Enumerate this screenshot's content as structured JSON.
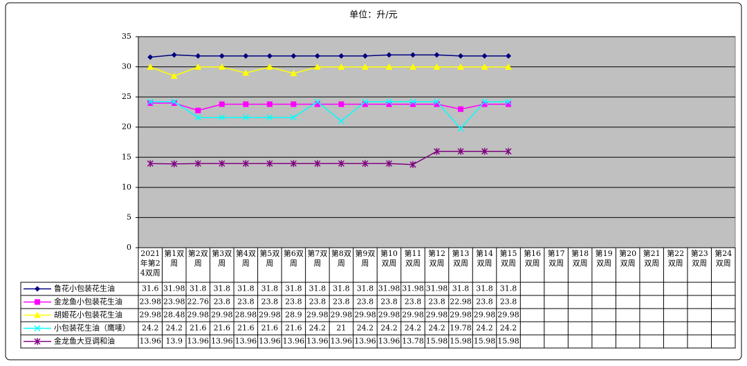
{
  "chart_data": {
    "type": "line",
    "title": "单位：升/元",
    "categories": [
      "2021年第24双周",
      "第1双周",
      "第2双周",
      "第3双周",
      "第4双周",
      "第5双周",
      "第6双周",
      "第7双周",
      "第8双周",
      "第9双周",
      "第10双周",
      "第11双周",
      "第12双周",
      "第13双周",
      "第14双周",
      "第15双周",
      "第16双周",
      "第17双周",
      "第18双周",
      "第19双周",
      "第20双周",
      "第21双周",
      "第22双周",
      "第23双周",
      "第24双周"
    ],
    "series": [
      {
        "name": "鲁花小包装花生油",
        "color": "#000080",
        "marker": "diamond",
        "values": [
          31.6,
          31.98,
          31.8,
          31.8,
          31.8,
          31.8,
          31.8,
          31.8,
          31.8,
          31.8,
          31.98,
          31.98,
          31.98,
          31.8,
          31.8,
          31.8,
          null,
          null,
          null,
          null,
          null,
          null,
          null,
          null,
          null
        ]
      },
      {
        "name": "金龙鱼小包装花生油",
        "color": "#ff00ff",
        "marker": "square",
        "values": [
          23.98,
          23.98,
          22.76,
          23.8,
          23.8,
          23.8,
          23.8,
          23.8,
          23.8,
          23.8,
          23.8,
          23.8,
          23.8,
          22.98,
          23.8,
          23.8,
          null,
          null,
          null,
          null,
          null,
          null,
          null,
          null,
          null
        ]
      },
      {
        "name": "胡姬花小包装花生油",
        "color": "#ffff00",
        "marker": "triangle",
        "values": [
          29.98,
          28.48,
          29.98,
          29.98,
          28.98,
          29.98,
          28.9,
          29.98,
          29.98,
          29.98,
          29.98,
          29.98,
          29.98,
          29.98,
          29.98,
          29.98,
          null,
          null,
          null,
          null,
          null,
          null,
          null,
          null,
          null
        ]
      },
      {
        "name": "小包装花生油（鹰唛）",
        "color": "#00ffff",
        "marker": "x",
        "values": [
          24.2,
          24.2,
          21.6,
          21.6,
          21.6,
          21.6,
          21.6,
          24.2,
          21,
          24.2,
          24.2,
          24.2,
          24.2,
          19.78,
          24.2,
          24.2,
          null,
          null,
          null,
          null,
          null,
          null,
          null,
          null,
          null
        ]
      },
      {
        "name": "金龙鱼大豆调和油",
        "color": "#800080",
        "marker": "asterisk",
        "values": [
          13.96,
          13.9,
          13.96,
          13.96,
          13.96,
          13.96,
          13.96,
          13.96,
          13.96,
          13.96,
          13.96,
          13.78,
          15.98,
          15.98,
          15.98,
          15.98,
          null,
          null,
          null,
          null,
          null,
          null,
          null,
          null,
          null
        ]
      }
    ],
    "ylim": [
      0,
      35
    ],
    "yticks": [
      0,
      5,
      10,
      15,
      20,
      25,
      30,
      35
    ],
    "grid": true,
    "background": "#c0c0c0"
  }
}
